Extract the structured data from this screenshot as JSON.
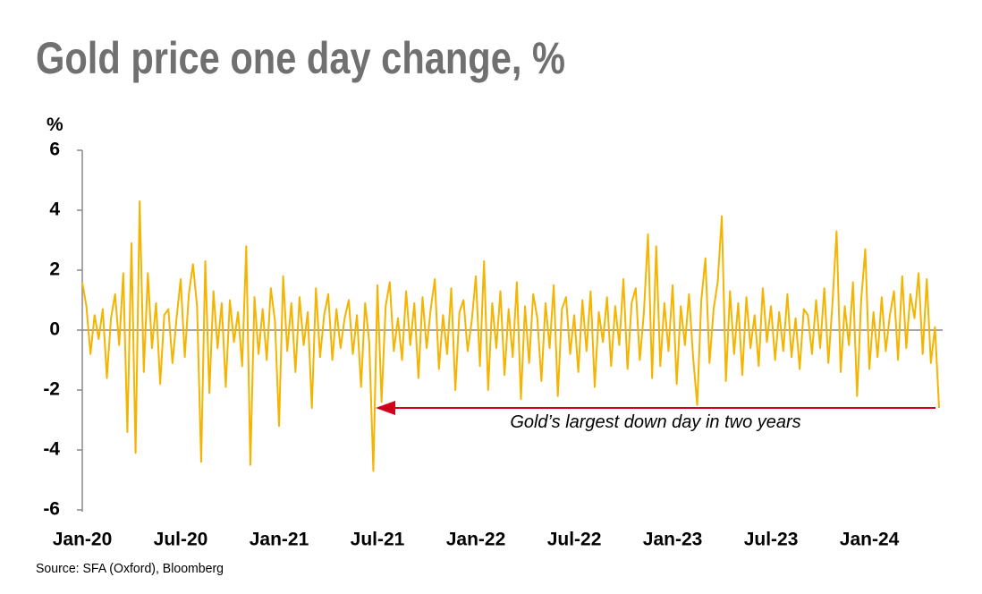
{
  "chart_data": {
    "type": "line",
    "title": "Gold price one day change, %",
    "y_label": "%",
    "source": "Source: SFA (Oxford), Bloomberg",
    "annotation": "Gold’s largest down day in two years",
    "color": "#f5b400",
    "annotation_color": "#d0021b",
    "ylim": [
      -6,
      6
    ],
    "yticks": [
      6,
      4,
      2,
      0,
      -2,
      -4,
      -6
    ],
    "categories": [
      "Jan-20",
      null,
      null,
      null,
      null,
      null,
      null,
      null,
      null,
      null,
      null,
      null,
      null,
      null,
      null,
      null,
      null,
      null,
      null,
      null,
      null,
      null,
      null,
      null,
      "Jul-20",
      null,
      null,
      null,
      null,
      null,
      null,
      null,
      null,
      null,
      null,
      null,
      null,
      null,
      null,
      null,
      null,
      null,
      null,
      null,
      null,
      null,
      null,
      null,
      "Jan-21",
      null,
      null,
      null,
      null,
      null,
      null,
      null,
      null,
      null,
      null,
      null,
      null,
      null,
      null,
      null,
      null,
      null,
      null,
      null,
      null,
      null,
      null,
      null,
      "Jul-21",
      null,
      null,
      null,
      null,
      null,
      null,
      null,
      null,
      null,
      null,
      null,
      null,
      null,
      null,
      null,
      null,
      null,
      null,
      null,
      null,
      null,
      null,
      null,
      "Jan-22",
      null,
      null,
      null,
      null,
      null,
      null,
      null,
      null,
      null,
      null,
      null,
      null,
      null,
      null,
      null,
      null,
      null,
      null,
      null,
      null,
      null,
      null,
      null,
      "Jul-22",
      null,
      null,
      null,
      null,
      null,
      null,
      null,
      null,
      null,
      null,
      null,
      null,
      null,
      null,
      null,
      null,
      null,
      null,
      null,
      null,
      null,
      null,
      null,
      "Jan-23",
      null,
      null,
      null,
      null,
      null,
      null,
      null,
      null,
      null,
      null,
      null,
      null,
      null,
      null,
      null,
      null,
      null,
      null,
      null,
      null,
      null,
      null,
      null,
      "Jul-23",
      null,
      null,
      null,
      null,
      null,
      null,
      null,
      null,
      null,
      null,
      null,
      null,
      null,
      null,
      null,
      null,
      null,
      null,
      null,
      null,
      null,
      null,
      null,
      "Jan-24",
      null,
      null,
      null,
      null,
      null,
      null,
      null,
      null,
      null,
      null,
      null,
      null,
      null,
      null,
      null,
      null,
      null
    ],
    "values": [
      1.6,
      0.8,
      -0.8,
      0.5,
      -0.3,
      0.7,
      -1.6,
      0.4,
      1.2,
      -0.5,
      1.9,
      -3.4,
      2.9,
      -4.1,
      4.3,
      -1.4,
      1.9,
      -0.6,
      0.9,
      -1.8,
      0.5,
      0.7,
      -1.1,
      0.4,
      1.7,
      -0.9,
      1.2,
      2.2,
      0.8,
      -4.4,
      2.3,
      -2.1,
      1.3,
      -0.6,
      0.9,
      -1.9,
      1.0,
      -0.4,
      0.6,
      -1.2,
      2.8,
      -4.5,
      1.1,
      -0.8,
      0.7,
      -1.0,
      1.4,
      0.3,
      -3.2,
      1.8,
      -0.7,
      0.9,
      -1.4,
      1.1,
      -0.5,
      0.6,
      -2.6,
      1.4,
      -0.9,
      0.5,
      1.2,
      -1.0,
      0.7,
      -0.6,
      0.4,
      1.0,
      -0.8,
      0.5,
      -1.9,
      0.9,
      -0.4,
      -4.7,
      1.5,
      -2.4,
      0.8,
      1.6,
      -0.7,
      0.4,
      -1.0,
      1.3,
      -0.5,
      0.9,
      -1.6,
      1.1,
      -0.6,
      0.7,
      1.7,
      -1.3,
      0.5,
      -0.8,
      1.4,
      -2.0,
      0.6,
      1.0,
      -0.7,
      0.3,
      1.8,
      -1.2,
      2.3,
      -2.0,
      0.9,
      -0.6,
      1.3,
      -1.5,
      0.7,
      -0.9,
      1.6,
      -2.3,
      0.8,
      -1.1,
      1.2,
      0.4,
      -1.7,
      0.9,
      -0.6,
      1.5,
      -2.2,
      0.7,
      1.1,
      -0.8,
      0.5,
      -1.4,
      1.0,
      -0.7,
      1.3,
      -1.9,
      0.6,
      -0.4,
      1.1,
      -1.2,
      0.8,
      -0.5,
      1.7,
      -1.3,
      0.9,
      1.4,
      -1.0,
      0.6,
      3.2,
      -1.6,
      2.8,
      -1.2,
      0.9,
      -0.7,
      1.5,
      -1.8,
      0.8,
      -0.5,
      1.2,
      -0.9,
      -2.5,
      1.0,
      2.4,
      -1.1,
      0.7,
      1.6,
      3.8,
      -1.7,
      1.3,
      -0.8,
      0.9,
      -1.5,
      1.1,
      -0.6,
      0.5,
      -1.2,
      1.4,
      -0.4,
      0.8,
      -1.0,
      0.6,
      -0.7,
      1.2,
      -0.9,
      0.4,
      -1.3,
      0.7,
      0.5,
      -0.8,
      1.0,
      -0.6,
      1.4,
      -1.1,
      0.9,
      3.3,
      -1.4,
      0.8,
      -0.5,
      1.6,
      -2.2,
      1.0,
      2.7,
      -1.3,
      0.6,
      -0.9,
      1.1,
      -0.7,
      0.5,
      1.3,
      -1.0,
      1.8,
      -0.6,
      1.2,
      0.4,
      1.9,
      -0.8,
      1.7,
      -1.1,
      0.1,
      -2.6
    ]
  }
}
